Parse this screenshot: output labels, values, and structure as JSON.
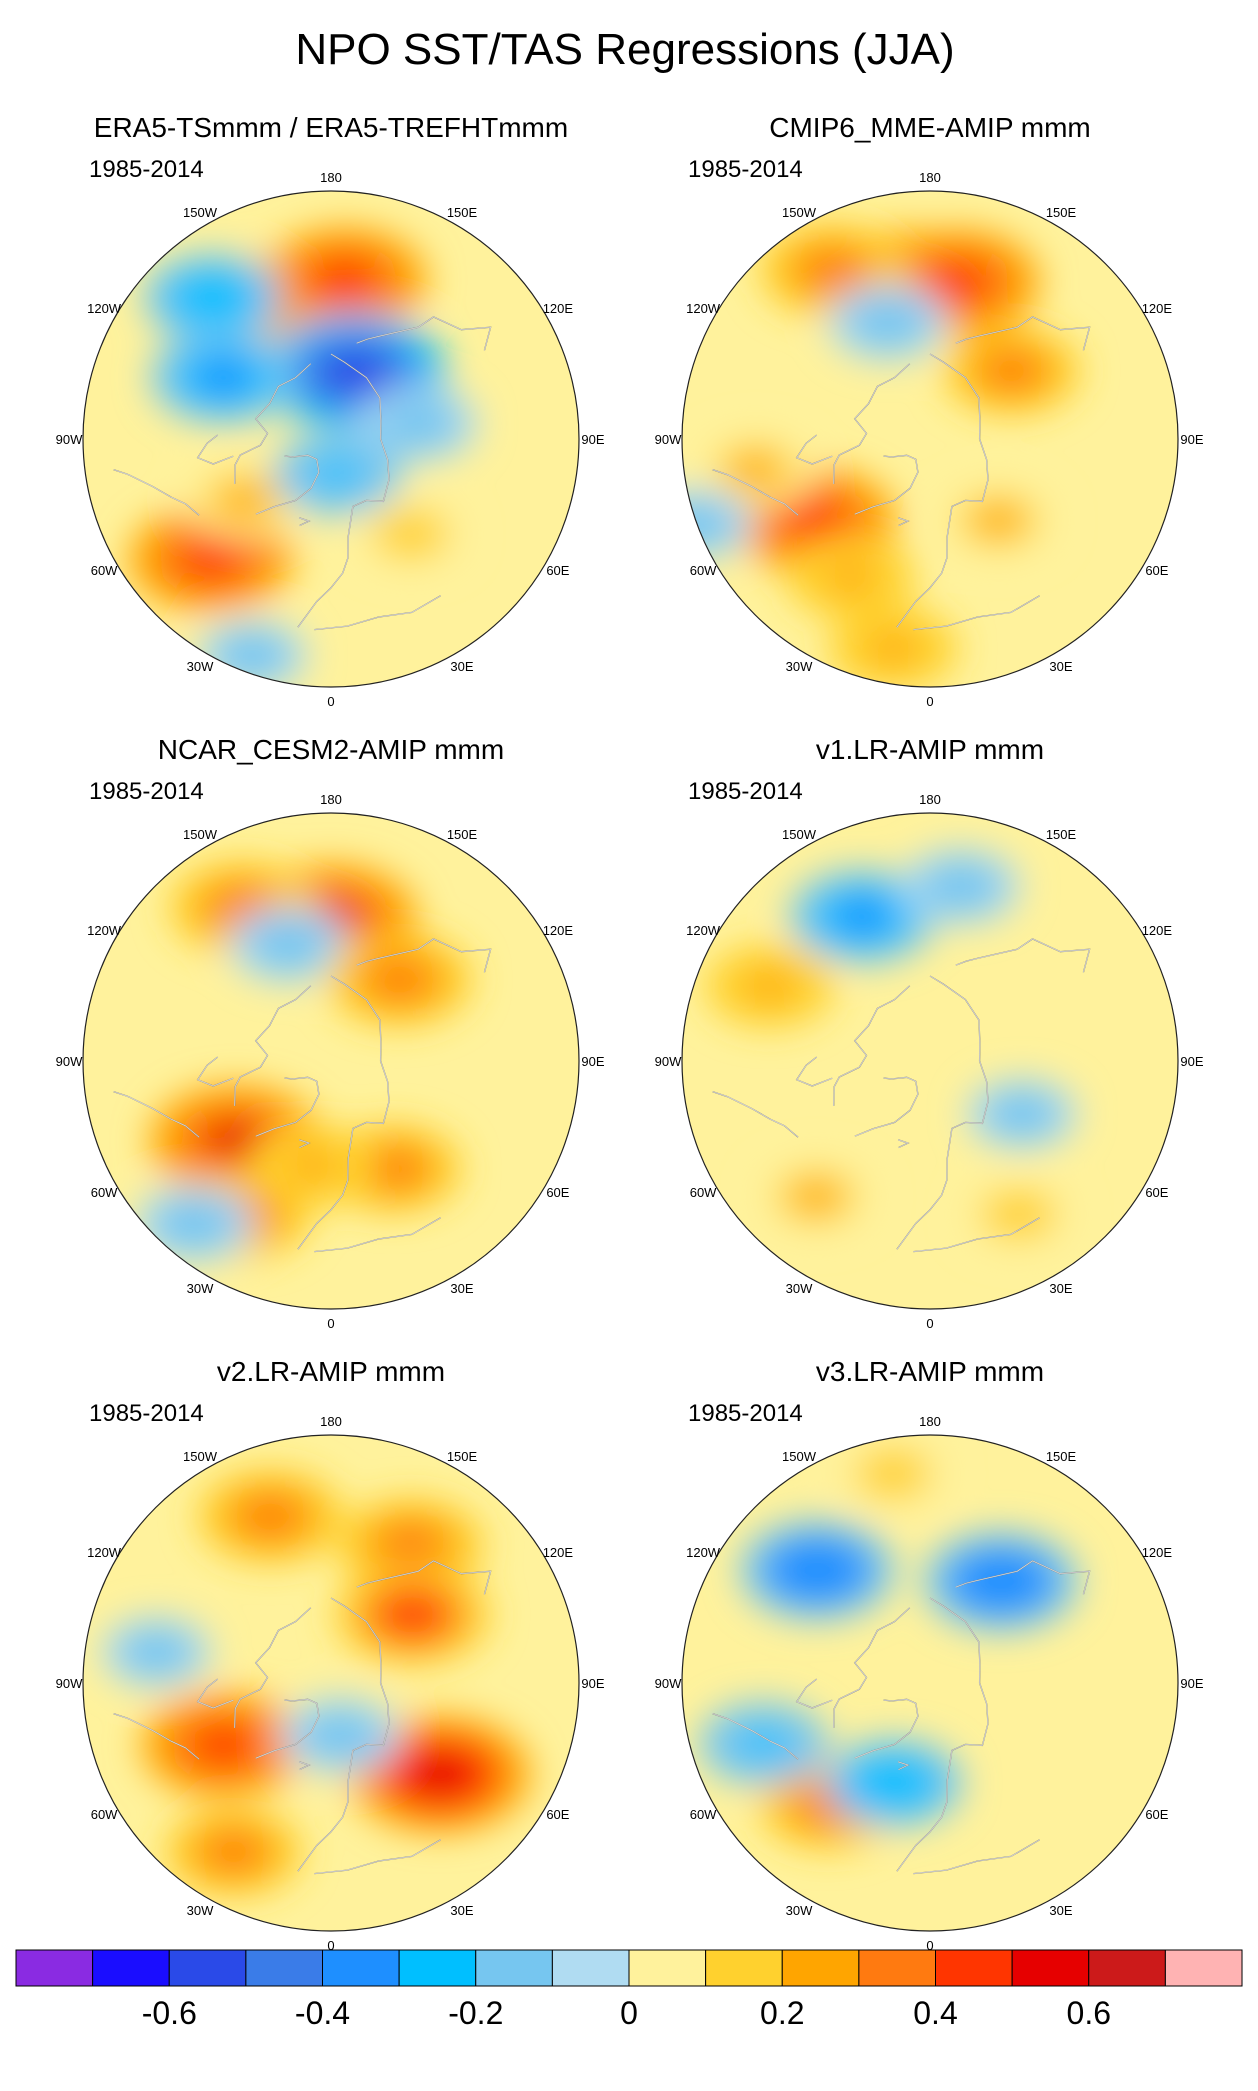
{
  "figure": {
    "title": "NPO SST/TAS Regressions (JJA)"
  },
  "chart_data": [
    {
      "type": "heatmap",
      "projection": "north-polar-stereographic",
      "title": "ERA5-TSmmm / ERA5-TREFHTmmm",
      "period": "1985-2014",
      "features": [
        {
          "lon": -160,
          "lat": 48,
          "value": 0.35
        },
        {
          "lon": 175,
          "lat": 45,
          "value": 0.45
        },
        {
          "lon": -140,
          "lat": 38,
          "value": -0.3
        },
        {
          "lon": 160,
          "lat": 70,
          "value": -0.55
        },
        {
          "lon": -120,
          "lat": 55,
          "value": -0.35
        },
        {
          "lon": -45,
          "lat": 42,
          "value": 0.45
        },
        {
          "lon": -55,
          "lat": 60,
          "value": 0.2
        },
        {
          "lon": 100,
          "lat": 65,
          "value": -0.2
        },
        {
          "lon": 10,
          "lat": 80,
          "value": -0.25
        },
        {
          "lon": 40,
          "lat": 55,
          "value": 0.15
        },
        {
          "lon": -20,
          "lat": 25,
          "value": -0.15
        }
      ]
    },
    {
      "type": "heatmap",
      "projection": "north-polar-stereographic",
      "title": "CMIP6_MME-AMIP  mmm",
      "period": "1985-2014",
      "features": [
        {
          "lon": -170,
          "lat": 45,
          "value": 0.45
        },
        {
          "lon": 170,
          "lat": 45,
          "value": 0.45
        },
        {
          "lon": -150,
          "lat": 35,
          "value": 0.35
        },
        {
          "lon": -160,
          "lat": 55,
          "value": -0.2
        },
        {
          "lon": -55,
          "lat": 50,
          "value": 0.45
        },
        {
          "lon": -30,
          "lat": 45,
          "value": 0.25
        },
        {
          "lon": 130,
          "lat": 60,
          "value": 0.3
        },
        {
          "lon": 40,
          "lat": 60,
          "value": 0.2
        },
        {
          "lon": -80,
          "lat": 40,
          "value": 0.2
        },
        {
          "lon": -10,
          "lat": 30,
          "value": 0.25
        },
        {
          "lon": -70,
          "lat": 20,
          "value": -0.15
        }
      ]
    },
    {
      "type": "heatmap",
      "projection": "north-polar-stereographic",
      "title": "NCAR_CESM2-AMIP  mmm",
      "period": "1985-2014",
      "features": [
        {
          "lon": 180,
          "lat": 50,
          "value": 0.5
        },
        {
          "lon": -150,
          "lat": 40,
          "value": 0.35
        },
        {
          "lon": -160,
          "lat": 55,
          "value": -0.2
        },
        {
          "lon": -50,
          "lat": 55,
          "value": 0.5
        },
        {
          "lon": -30,
          "lat": 40,
          "value": 0.3
        },
        {
          "lon": 140,
          "lat": 60,
          "value": 0.35
        },
        {
          "lon": 30,
          "lat": 55,
          "value": 0.3
        },
        {
          "lon": -40,
          "lat": 30,
          "value": -0.2
        },
        {
          "lon": -10,
          "lat": 60,
          "value": 0.25
        }
      ]
    },
    {
      "type": "heatmap",
      "projection": "north-polar-stereographic",
      "title": "v1.LR-AMIP  mmm",
      "period": "1985-2014",
      "features": [
        {
          "lon": -155,
          "lat": 45,
          "value": -0.35
        },
        {
          "lon": 170,
          "lat": 40,
          "value": -0.2
        },
        {
          "lon": -115,
          "lat": 40,
          "value": 0.25
        },
        {
          "lon": -40,
          "lat": 40,
          "value": 0.2
        },
        {
          "lon": 60,
          "lat": 60,
          "value": -0.15
        },
        {
          "lon": 30,
          "lat": 40,
          "value": 0.15
        }
      ]
    },
    {
      "type": "heatmap",
      "projection": "north-polar-stereographic",
      "title": "v2.LR-AMIP  mmm",
      "period": "1985-2014",
      "features": [
        {
          "lon": -160,
          "lat": 40,
          "value": 0.35
        },
        {
          "lon": 150,
          "lat": 45,
          "value": 0.35
        },
        {
          "lon": 130,
          "lat": 60,
          "value": 0.4
        },
        {
          "lon": -60,
          "lat": 55,
          "value": 0.45
        },
        {
          "lon": -30,
          "lat": 35,
          "value": 0.3
        },
        {
          "lon": 50,
          "lat": 50,
          "value": 0.55
        },
        {
          "lon": -100,
          "lat": 40,
          "value": -0.15
        },
        {
          "lon": 10,
          "lat": 75,
          "value": -0.2
        }
      ]
    },
    {
      "type": "heatmap",
      "projection": "north-polar-stereographic",
      "title": "v3.LR-AMIP  mmm",
      "period": "1985-2014",
      "features": [
        {
          "lon": -135,
          "lat": 45,
          "value": -0.4
        },
        {
          "lon": 145,
          "lat": 55,
          "value": -0.4
        },
        {
          "lon": -170,
          "lat": 30,
          "value": 0.15
        },
        {
          "lon": -40,
          "lat": 45,
          "value": 0.3
        },
        {
          "lon": -20,
          "lat": 60,
          "value": -0.3
        },
        {
          "lon": -70,
          "lat": 40,
          "value": -0.25
        }
      ]
    }
  ],
  "colorbar": {
    "levels": [
      -0.8,
      -0.7,
      -0.6,
      -0.5,
      -0.4,
      -0.3,
      -0.2,
      -0.1,
      0,
      0.1,
      0.2,
      0.3,
      0.4,
      0.5,
      0.6,
      0.7,
      0.8
    ],
    "colors": [
      "#8a2be2",
      "#1a0dff",
      "#2a4ae8",
      "#3a7ce8",
      "#1e8fff",
      "#00bfff",
      "#76c6f0",
      "#b0dcf2",
      "#fff29c",
      "#ffd12e",
      "#ffa500",
      "#ff7a10",
      "#ff3500",
      "#e60000",
      "#cc1a1a",
      "#ffb3b3"
    ],
    "tick_labels": [
      "-0.6",
      "-0.4",
      "-0.2",
      "0",
      "0.2",
      "0.4",
      "0.6"
    ]
  },
  "map_labels": {
    "lon_180": "180",
    "lon_150W": "150W",
    "lon_150E": "150E",
    "lon_120W": "120W",
    "lon_120E": "120E",
    "lon_90W": "90W",
    "lon_90E": "90E",
    "lon_60W": "60W",
    "lon_60E": "60E",
    "lon_30W": "30W",
    "lon_30E": "30E",
    "lon_0": "0"
  }
}
